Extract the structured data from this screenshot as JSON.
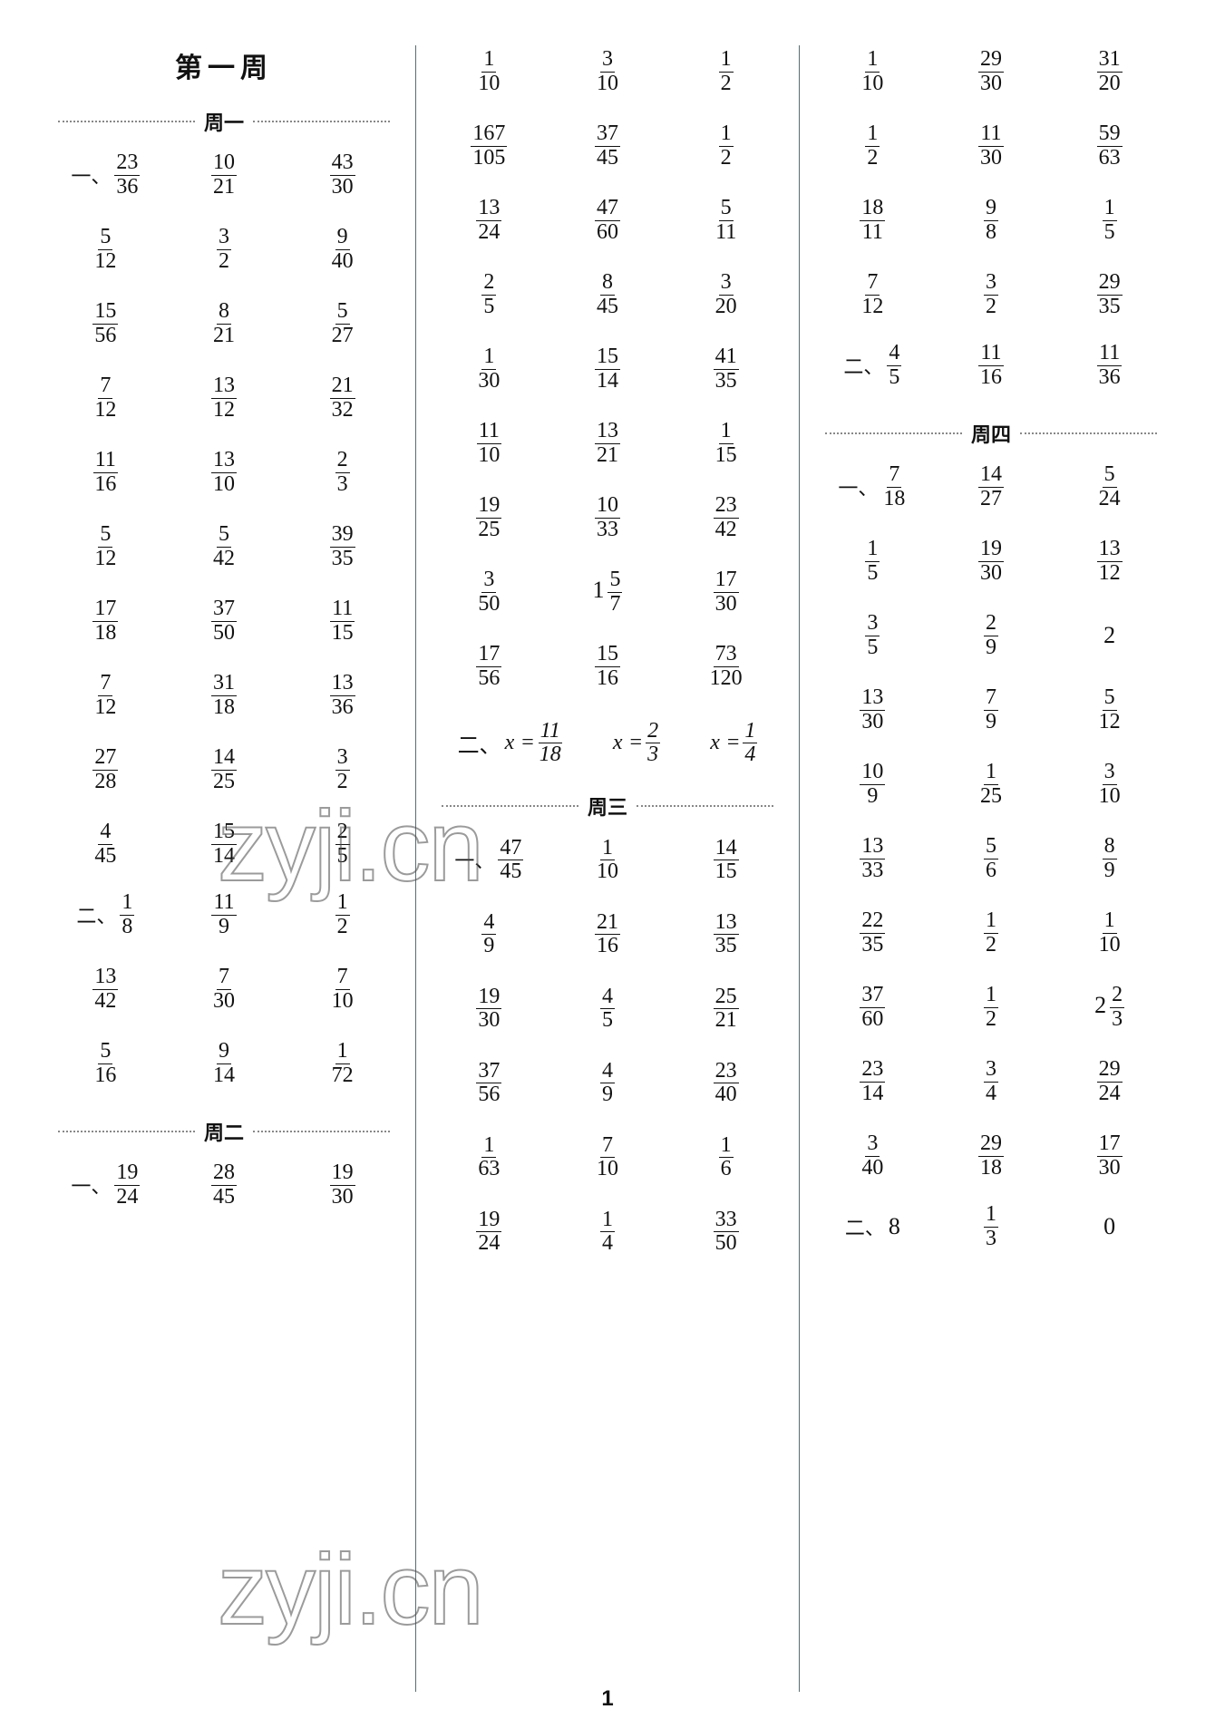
{
  "page_number": "1",
  "watermark_text": "zyji.cn",
  "week_title": "第一周",
  "day_labels": [
    "周一",
    "周二",
    "周三",
    "周四"
  ],
  "section_labels": [
    "一、",
    "二、"
  ],
  "col1": {
    "title": "第一周",
    "day1": {
      "label": "周一",
      "sec1": [
        [
          {
            "p": "一、",
            "n": "23",
            "d": "36"
          },
          {
            "n": "10",
            "d": "21"
          },
          {
            "n": "43",
            "d": "30"
          }
        ],
        [
          {
            "n": "5",
            "d": "12"
          },
          {
            "n": "3",
            "d": "2"
          },
          {
            "n": "9",
            "d": "40"
          }
        ],
        [
          {
            "n": "15",
            "d": "56"
          },
          {
            "n": "8",
            "d": "21"
          },
          {
            "n": "5",
            "d": "27"
          }
        ],
        [
          {
            "n": "7",
            "d": "12"
          },
          {
            "n": "13",
            "d": "12"
          },
          {
            "n": "21",
            "d": "32"
          }
        ],
        [
          {
            "n": "11",
            "d": "16"
          },
          {
            "n": "13",
            "d": "10"
          },
          {
            "n": "2",
            "d": "3"
          }
        ],
        [
          {
            "n": "5",
            "d": "12"
          },
          {
            "n": "5",
            "d": "42"
          },
          {
            "n": "39",
            "d": "35"
          }
        ],
        [
          {
            "n": "17",
            "d": "18"
          },
          {
            "n": "37",
            "d": "50"
          },
          {
            "n": "11",
            "d": "15"
          }
        ],
        [
          {
            "n": "7",
            "d": "12"
          },
          {
            "n": "31",
            "d": "18"
          },
          {
            "n": "13",
            "d": "36"
          }
        ],
        [
          {
            "n": "27",
            "d": "28"
          },
          {
            "n": "14",
            "d": "25"
          },
          {
            "n": "3",
            "d": "2"
          }
        ],
        [
          {
            "n": "4",
            "d": "45"
          },
          {
            "n": "15",
            "d": "14"
          },
          {
            "n": "2",
            "d": "5"
          }
        ]
      ],
      "sec2": [
        [
          {
            "p": "二、",
            "n": "1",
            "d": "8"
          },
          {
            "n": "11",
            "d": "9"
          },
          {
            "n": "1",
            "d": "2"
          }
        ],
        [
          {
            "n": "13",
            "d": "42"
          },
          {
            "n": "7",
            "d": "30"
          },
          {
            "n": "7",
            "d": "10"
          }
        ],
        [
          {
            "n": "5",
            "d": "16"
          },
          {
            "n": "9",
            "d": "14"
          },
          {
            "n": "1",
            "d": "72"
          }
        ]
      ]
    },
    "day2": {
      "label": "周二",
      "sec1": [
        [
          {
            "p": "一、",
            "n": "19",
            "d": "24"
          },
          {
            "n": "28",
            "d": "45"
          },
          {
            "n": "19",
            "d": "30"
          }
        ]
      ]
    }
  },
  "col2": {
    "cont": [
      [
        {
          "n": "1",
          "d": "10"
        },
        {
          "n": "3",
          "d": "10"
        },
        {
          "n": "1",
          "d": "2"
        }
      ],
      [
        {
          "n": "167",
          "d": "105"
        },
        {
          "n": "37",
          "d": "45"
        },
        {
          "n": "1",
          "d": "2"
        }
      ],
      [
        {
          "n": "13",
          "d": "24"
        },
        {
          "n": "47",
          "d": "60"
        },
        {
          "n": "5",
          "d": "11"
        }
      ],
      [
        {
          "n": "2",
          "d": "5"
        },
        {
          "n": "8",
          "d": "45"
        },
        {
          "n": "3",
          "d": "20"
        }
      ],
      [
        {
          "n": "1",
          "d": "30"
        },
        {
          "n": "15",
          "d": "14"
        },
        {
          "n": "41",
          "d": "35"
        }
      ],
      [
        {
          "n": "11",
          "d": "10"
        },
        {
          "n": "13",
          "d": "21"
        },
        {
          "n": "1",
          "d": "15"
        }
      ],
      [
        {
          "n": "19",
          "d": "25"
        },
        {
          "n": "10",
          "d": "33"
        },
        {
          "n": "23",
          "d": "42"
        }
      ],
      [
        {
          "n": "3",
          "d": "50"
        },
        {
          "w": "1",
          "n": "5",
          "d": "7"
        },
        {
          "n": "17",
          "d": "30"
        }
      ],
      [
        {
          "n": "17",
          "d": "56"
        },
        {
          "n": "15",
          "d": "16"
        },
        {
          "n": "73",
          "d": "120"
        }
      ]
    ],
    "eqrow": {
      "prefix": "二、",
      "eqs": [
        {
          "var": "x",
          "n": "11",
          "d": "18"
        },
        {
          "var": "x",
          "n": "2",
          "d": "3"
        },
        {
          "var": "x",
          "n": "1",
          "d": "4"
        }
      ]
    },
    "day3": {
      "label": "周三",
      "sec1": [
        [
          {
            "p": "一、",
            "n": "47",
            "d": "45"
          },
          {
            "n": "1",
            "d": "10"
          },
          {
            "n": "14",
            "d": "15"
          }
        ],
        [
          {
            "n": "4",
            "d": "9"
          },
          {
            "n": "21",
            "d": "16"
          },
          {
            "n": "13",
            "d": "35"
          }
        ],
        [
          {
            "n": "19",
            "d": "30"
          },
          {
            "n": "4",
            "d": "5"
          },
          {
            "n": "25",
            "d": "21"
          }
        ],
        [
          {
            "n": "37",
            "d": "56"
          },
          {
            "n": "4",
            "d": "9"
          },
          {
            "n": "23",
            "d": "40"
          }
        ],
        [
          {
            "n": "1",
            "d": "63"
          },
          {
            "n": "7",
            "d": "10"
          },
          {
            "n": "1",
            "d": "6"
          }
        ],
        [
          {
            "n": "19",
            "d": "24"
          },
          {
            "n": "1",
            "d": "4"
          },
          {
            "n": "33",
            "d": "50"
          }
        ]
      ]
    }
  },
  "col3": {
    "cont": [
      [
        {
          "n": "1",
          "d": "10"
        },
        {
          "n": "29",
          "d": "30"
        },
        {
          "n": "31",
          "d": "20"
        }
      ],
      [
        {
          "n": "1",
          "d": "2"
        },
        {
          "n": "11",
          "d": "30"
        },
        {
          "n": "59",
          "d": "63"
        }
      ],
      [
        {
          "n": "18",
          "d": "11"
        },
        {
          "n": "9",
          "d": "8"
        },
        {
          "n": "1",
          "d": "5"
        }
      ],
      [
        {
          "n": "7",
          "d": "12"
        },
        {
          "n": "3",
          "d": "2"
        },
        {
          "n": "29",
          "d": "35"
        }
      ]
    ],
    "sec2": [
      [
        {
          "p": "二、",
          "n": "4",
          "d": "5"
        },
        {
          "n": "11",
          "d": "16"
        },
        {
          "n": "11",
          "d": "36"
        }
      ]
    ],
    "day4": {
      "label": "周四",
      "sec1": [
        [
          {
            "p": "一、",
            "n": "7",
            "d": "18"
          },
          {
            "n": "14",
            "d": "27"
          },
          {
            "n": "5",
            "d": "24"
          }
        ],
        [
          {
            "n": "1",
            "d": "5"
          },
          {
            "n": "19",
            "d": "30"
          },
          {
            "n": "13",
            "d": "12"
          }
        ],
        [
          {
            "n": "3",
            "d": "5"
          },
          {
            "n": "2",
            "d": "9"
          },
          {
            "plain": "2"
          }
        ],
        [
          {
            "n": "13",
            "d": "30"
          },
          {
            "n": "7",
            "d": "9"
          },
          {
            "n": "5",
            "d": "12"
          }
        ],
        [
          {
            "n": "10",
            "d": "9"
          },
          {
            "n": "1",
            "d": "25"
          },
          {
            "n": "3",
            "d": "10"
          }
        ],
        [
          {
            "n": "13",
            "d": "33"
          },
          {
            "n": "5",
            "d": "6"
          },
          {
            "n": "8",
            "d": "9"
          }
        ],
        [
          {
            "n": "22",
            "d": "35"
          },
          {
            "n": "1",
            "d": "2"
          },
          {
            "n": "1",
            "d": "10"
          }
        ],
        [
          {
            "n": "37",
            "d": "60"
          },
          {
            "n": "1",
            "d": "2"
          },
          {
            "w": "2",
            "n": "2",
            "d": "3"
          }
        ],
        [
          {
            "n": "23",
            "d": "14"
          },
          {
            "n": "3",
            "d": "4"
          },
          {
            "n": "29",
            "d": "24"
          }
        ],
        [
          {
            "n": "3",
            "d": "40"
          },
          {
            "n": "29",
            "d": "18"
          },
          {
            "n": "17",
            "d": "30"
          }
        ]
      ],
      "sec2": [
        [
          {
            "p": "二、",
            "plain": "8"
          },
          {
            "n": "1",
            "d": "3"
          },
          {
            "plain": "0"
          }
        ]
      ]
    }
  }
}
